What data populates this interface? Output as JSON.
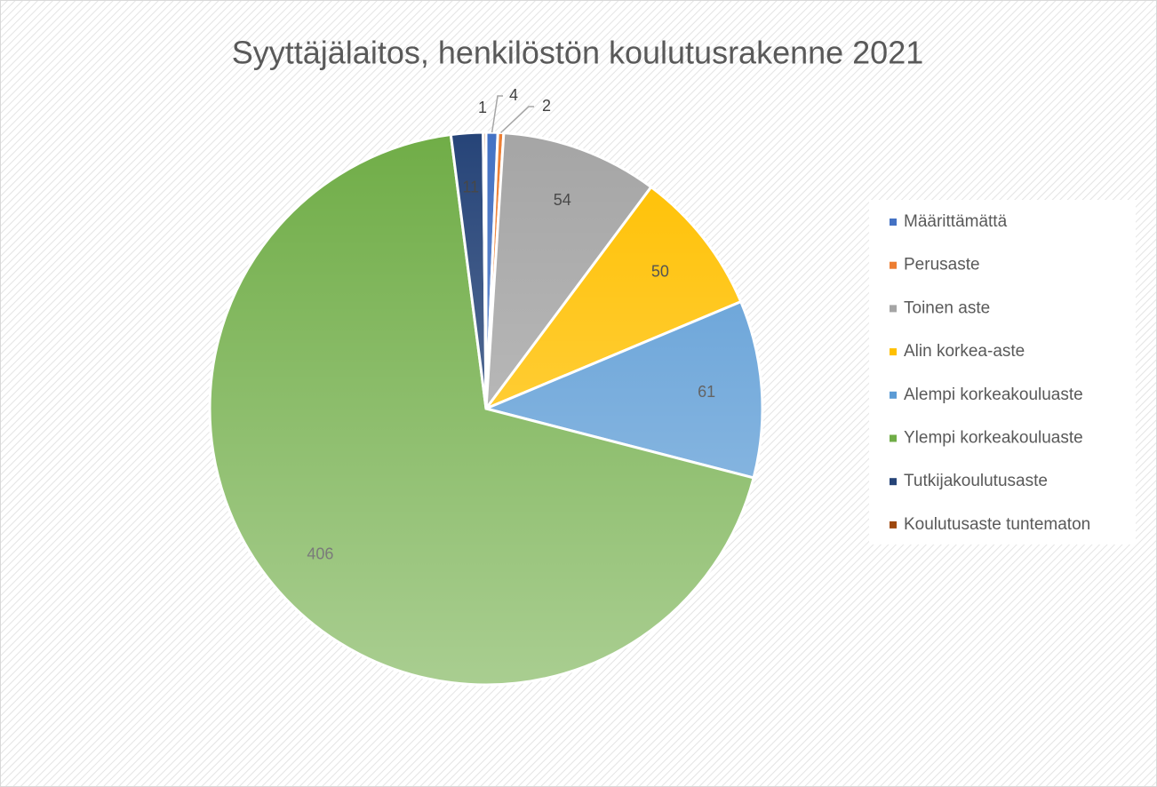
{
  "chart_data": {
    "type": "pie",
    "title": "Syyttäjälaitos, henkilöstön koulutusrakenne 2021",
    "categories": [
      "Määrittämättä",
      "Perusaste",
      "Toinen aste",
      "Alin korkea-aste",
      "Alempi korkeakouluaste",
      "Ylempi korkeakouluaste",
      "Tutkijakoulutusaste",
      "Koulutusaste tuntematon"
    ],
    "values": [
      4,
      2,
      54,
      50,
      61,
      406,
      11,
      1
    ],
    "colors": [
      "#4472c4",
      "#ed7d31",
      "#a5a5a5",
      "#ffc000",
      "#5b9bd5",
      "#70ad47",
      "#264478",
      "#9e480e"
    ],
    "legend": "right"
  }
}
